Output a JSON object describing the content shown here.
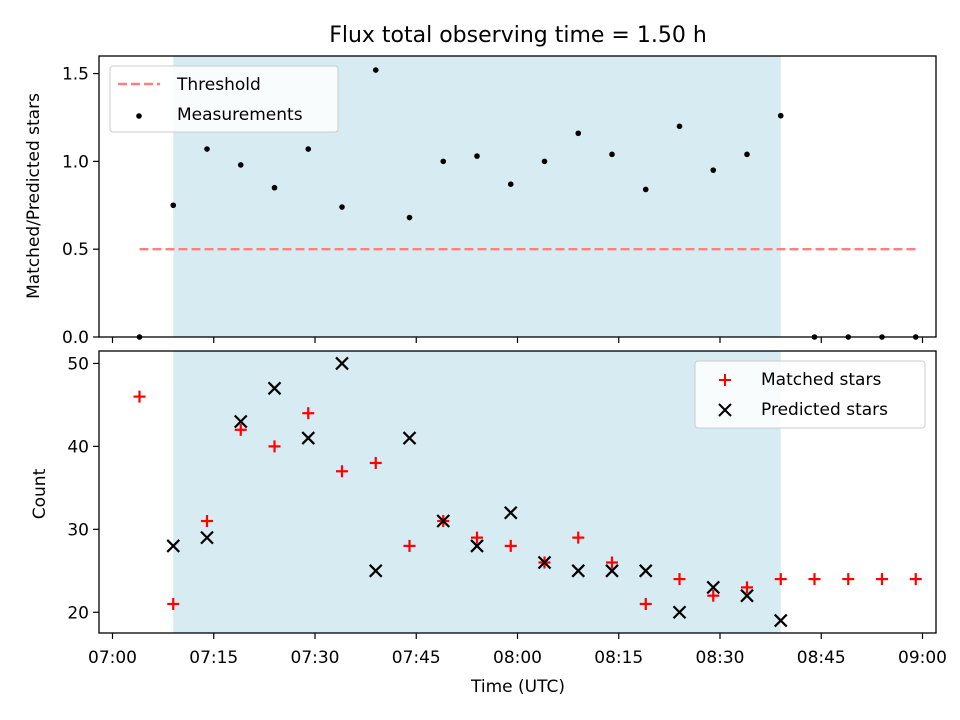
{
  "colors": {
    "shade": "#add8e6",
    "threshold": "#ff7f7f",
    "measurement": "#000000",
    "matched": "#ff0000",
    "predicted": "#000000"
  },
  "chart_data": [
    {
      "type": "scatter",
      "title": "Flux total observing time = 1.50 h",
      "xlabel": "",
      "ylabel": "Matched/Predicted stars",
      "xlim": [
        "06:58",
        "09:02"
      ],
      "ylim": [
        0,
        1.6
      ],
      "yticks": [
        "0.0",
        "0.5",
        "1.0",
        "1.5"
      ],
      "grid": false,
      "legend_position": "upper left",
      "shaded_interval": [
        "07:09",
        "08:39"
      ],
      "threshold": {
        "name": "Threshold",
        "style": "dashed line",
        "y": 0.5,
        "x": [
          "07:04",
          "08:59"
        ]
      },
      "series": [
        {
          "name": "Measurements",
          "marker": "dot",
          "x": [
            "07:04",
            "07:09",
            "07:14",
            "07:19",
            "07:24",
            "07:29",
            "07:34",
            "07:39",
            "07:44",
            "07:49",
            "07:54",
            "07:59",
            "08:04",
            "08:09",
            "08:14",
            "08:19",
            "08:24",
            "08:29",
            "08:34",
            "08:39",
            "08:44",
            "08:49",
            "08:54",
            "08:59"
          ],
          "y": [
            0,
            0.75,
            1.07,
            0.98,
            0.85,
            1.07,
            0.74,
            1.52,
            0.68,
            1.0,
            1.03,
            0.87,
            1.0,
            1.16,
            1.04,
            0.84,
            1.2,
            0.95,
            1.04,
            1.26,
            0,
            0,
            0,
            0
          ]
        }
      ]
    },
    {
      "type": "scatter",
      "title": "",
      "xlabel": "Time (UTC)",
      "ylabel": "Count",
      "xlim": [
        "06:58",
        "09:02"
      ],
      "ylim": [
        17.5,
        51.5
      ],
      "xticks": [
        "07:00",
        "07:15",
        "07:30",
        "07:45",
        "08:00",
        "08:15",
        "08:30",
        "08:45",
        "09:00"
      ],
      "yticks": [
        "20",
        "30",
        "40",
        "50"
      ],
      "grid": false,
      "legend_position": "upper right",
      "shaded_interval": [
        "07:09",
        "08:39"
      ],
      "series": [
        {
          "name": "Matched stars",
          "marker": "plus",
          "x": [
            "07:04",
            "07:09",
            "07:14",
            "07:19",
            "07:24",
            "07:29",
            "07:34",
            "07:39",
            "07:44",
            "07:49",
            "07:54",
            "07:59",
            "08:04",
            "08:09",
            "08:14",
            "08:19",
            "08:24",
            "08:29",
            "08:34",
            "08:39",
            "08:44",
            "08:49",
            "08:54",
            "08:59"
          ],
          "y": [
            46,
            21,
            31,
            42,
            40,
            44,
            37,
            38,
            28,
            31,
            29,
            28,
            26,
            29,
            26,
            21,
            24,
            22,
            23,
            24,
            24,
            24,
            24,
            24
          ]
        },
        {
          "name": "Predicted stars",
          "marker": "x",
          "x": [
            "07:09",
            "07:14",
            "07:19",
            "07:24",
            "07:29",
            "07:34",
            "07:39",
            "07:44",
            "07:49",
            "07:54",
            "07:59",
            "08:04",
            "08:09",
            "08:14",
            "08:19",
            "08:24",
            "08:29",
            "08:34",
            "08:39"
          ],
          "y": [
            28,
            29,
            43,
            47,
            41,
            50,
            25,
            41,
            31,
            28,
            32,
            26,
            25,
            25,
            25,
            20,
            23,
            22,
            19
          ]
        }
      ]
    }
  ]
}
